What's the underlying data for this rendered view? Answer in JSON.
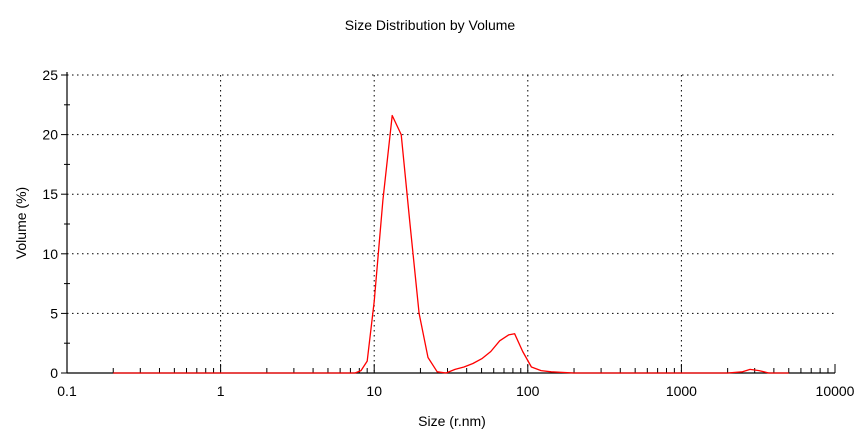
{
  "chart_data": {
    "type": "line",
    "title": "Size Distribution by Volume",
    "xlabel": "Size (r.nm)",
    "ylabel": "Volume (%)",
    "x_scale": "log",
    "xlim": [
      0.1,
      10000
    ],
    "ylim": [
      0,
      25
    ],
    "x_ticks": [
      {
        "value": 0.1,
        "label": "0.1"
      },
      {
        "value": 1,
        "label": "1"
      },
      {
        "value": 10,
        "label": "10"
      },
      {
        "value": 100,
        "label": "100"
      },
      {
        "value": 1000,
        "label": "1000"
      },
      {
        "value": 10000,
        "label": "10000"
      }
    ],
    "y_ticks": [
      {
        "value": 0,
        "label": "0"
      },
      {
        "value": 5,
        "label": "5"
      },
      {
        "value": 10,
        "label": "10"
      },
      {
        "value": 15,
        "label": "15"
      },
      {
        "value": 20,
        "label": "20"
      },
      {
        "value": 25,
        "label": "25"
      }
    ],
    "grid": "dotted",
    "series_color": "#ff0000",
    "series": [
      {
        "x": [
          0.2,
          1,
          5,
          7.5,
          8.2,
          9.0,
          10.0,
          11.4,
          13.1,
          15.0,
          17.1,
          19.6,
          22.4,
          25.7,
          29.4,
          33.6,
          38.4,
          43.9,
          50.2,
          57.4,
          65.6,
          75.0,
          82.1,
          92.7,
          105.5,
          122.0,
          142.0,
          200,
          400,
          1000,
          2000,
          2500,
          2800,
          3200,
          3700,
          5000
        ],
        "y": [
          0,
          0,
          0,
          0,
          0.2,
          1.0,
          6.0,
          14.5,
          21.6,
          20.0,
          12.5,
          5.0,
          1.3,
          0.1,
          0.0,
          0.3,
          0.5,
          0.8,
          1.2,
          1.8,
          2.7,
          3.2,
          3.3,
          1.8,
          0.5,
          0.2,
          0.1,
          0,
          0,
          0,
          0,
          0.1,
          0.3,
          0.2,
          0,
          0
        ]
      }
    ]
  }
}
